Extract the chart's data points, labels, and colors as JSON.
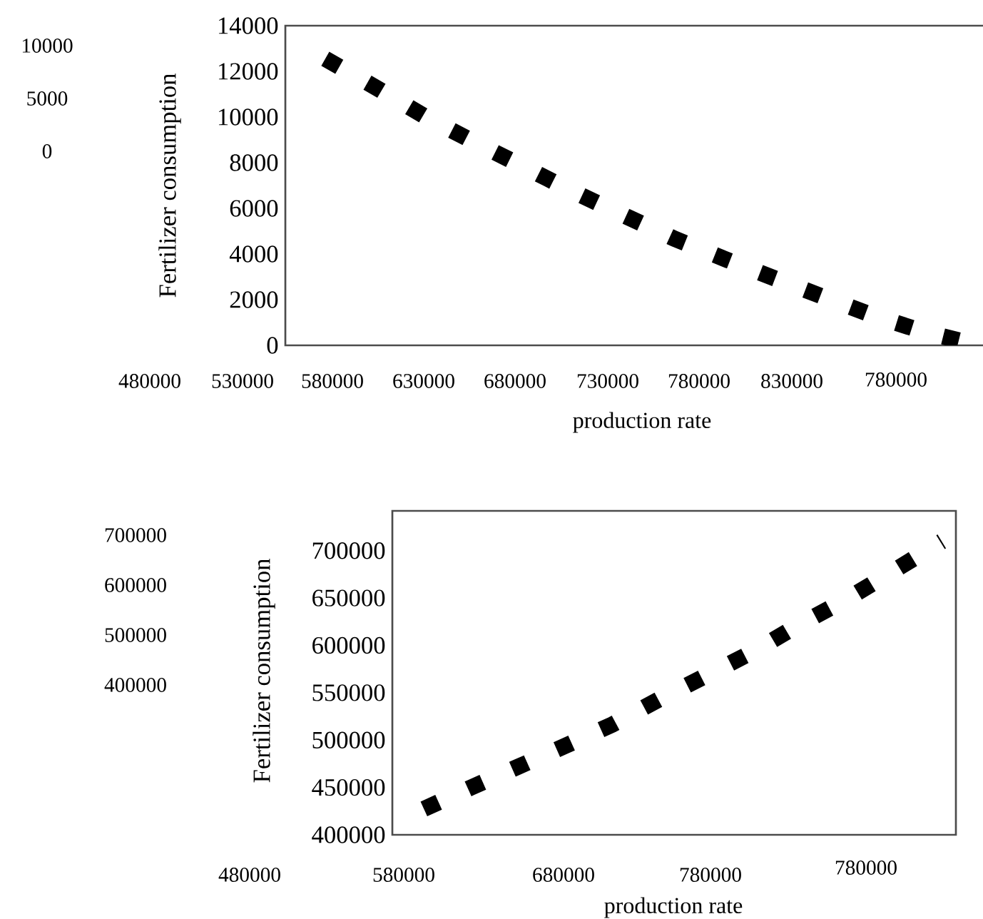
{
  "chart_data": [
    {
      "type": "line",
      "xlabel": "production rate",
      "ylabel": "Fertilizer consumption",
      "categories": [
        null,
        null,
        null,
        null,
        null,
        null,
        null,
        null,
        null,
        null,
        null,
        null,
        null,
        null
      ],
      "series": [
        {
          "color": "#000000",
          "values": [
            12550,
            11310,
            10020,
            8890,
            7800,
            6700,
            5680,
            4670,
            3790,
            2940,
            2110,
            1290,
            600,
            50
          ]
        }
      ],
      "line_style": "dotted",
      "ylim": [
        0,
        14000
      ],
      "yticks": [
        0,
        2000,
        4000,
        6000,
        8000,
        10000,
        12000,
        14000
      ],
      "annotations": [
        "10000",
        "5000",
        "0",
        "480000",
        "530000",
        "580000",
        "630000",
        "680000",
        "730000",
        "780000",
        "830000",
        "780000"
      ]
    },
    {
      "type": "line",
      "xlabel": "production rate",
      "ylabel": "Fertilizer consumption",
      "categories": [
        null,
        null,
        null,
        null,
        null,
        null,
        null,
        null,
        null,
        null,
        null,
        null
      ],
      "series": [
        {
          "color": "#000000",
          "values": [
            427300,
            449900,
            471800,
            493800,
            516400,
            543000,
            568200,
            593500,
            622700,
            649300,
            679300,
            709800
          ]
        }
      ],
      "line_style": "dotted",
      "ylim": [
        400000,
        742000
      ],
      "yticks": [
        400000,
        450000,
        500000,
        550000,
        600000,
        650000,
        700000
      ],
      "annotations": [
        "700000",
        "600000",
        "500000",
        "400000",
        "480000",
        "580000",
        "680000",
        "780000",
        "780000"
      ]
    }
  ]
}
